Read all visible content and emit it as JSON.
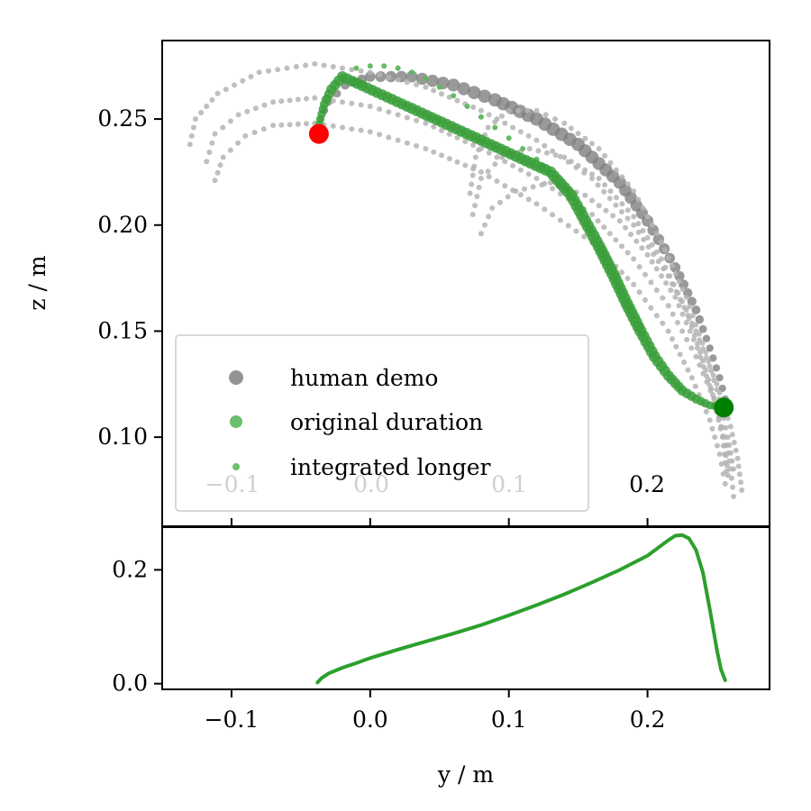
{
  "chart_data": [
    {
      "panel": "top",
      "type": "scatter",
      "ylabel": "z / m",
      "xlim": [
        -0.15,
        0.288
      ],
      "ylim": [
        0.058,
        0.287
      ],
      "yticks": [
        0.1,
        0.15,
        0.2,
        0.25
      ],
      "ytick_labels": [
        "0.10",
        "0.15",
        "0.20",
        "0.25"
      ],
      "faded_xtick_labels": [
        "−0.1",
        "0.0",
        "0.1"
      ],
      "visible_xtick_label": "0.2",
      "grid": false,
      "legend_position": "lower-left",
      "colors": {
        "human_demo": "#808080",
        "human_demo_light": "#b4b4b4",
        "original_duration": "#3a9f3a",
        "integrated_longer": "#5cb85c",
        "start_marker": "#ff0000",
        "end_marker": "#008000"
      },
      "legend": [
        "human demo",
        "original duration",
        "integrated longer"
      ],
      "series": [
        {
          "name": "human demo",
          "curves": [
            [
              [
                -0.038,
                0.246
              ],
              [
                -0.03,
                0.258
              ],
              [
                -0.018,
                0.266
              ],
              [
                0.0,
                0.27
              ],
              [
                0.03,
                0.27
              ],
              [
                0.06,
                0.266
              ],
              [
                0.09,
                0.259
              ],
              [
                0.12,
                0.25
              ],
              [
                0.15,
                0.238
              ],
              [
                0.18,
                0.22
              ],
              [
                0.2,
                0.202
              ],
              [
                0.22,
                0.18
              ],
              [
                0.235,
                0.16
              ],
              [
                0.245,
                0.142
              ],
              [
                0.252,
                0.128
              ],
              [
                0.256,
                0.118
              ],
              [
                0.258,
                0.112
              ]
            ],
            [
              [
                -0.13,
                0.238
              ],
              [
                -0.126,
                0.25
              ],
              [
                -0.11,
                0.262
              ],
              [
                -0.08,
                0.272
              ],
              [
                -0.04,
                0.276
              ],
              [
                0.0,
                0.272
              ],
              [
                0.04,
                0.265
              ],
              [
                0.08,
                0.254
              ],
              [
                0.12,
                0.24
              ],
              [
                0.16,
                0.222
              ],
              [
                0.19,
                0.2
              ],
              [
                0.215,
                0.176
              ],
              [
                0.235,
                0.15
              ],
              [
                0.25,
                0.125
              ],
              [
                0.26,
                0.105
              ],
              [
                0.265,
                0.09
              ],
              [
                0.268,
                0.075
              ]
            ],
            [
              [
                -0.118,
                0.23
              ],
              [
                -0.112,
                0.243
              ],
              [
                -0.095,
                0.252
              ],
              [
                -0.07,
                0.258
              ],
              [
                -0.04,
                0.26
              ],
              [
                0.0,
                0.256
              ],
              [
                0.04,
                0.248
              ],
              [
                0.08,
                0.236
              ],
              [
                0.12,
                0.222
              ],
              [
                0.16,
                0.205
              ],
              [
                0.19,
                0.184
              ],
              [
                0.215,
                0.162
              ],
              [
                0.235,
                0.138
              ],
              [
                0.248,
                0.118
              ],
              [
                0.256,
                0.1
              ],
              [
                0.26,
                0.085
              ],
              [
                0.262,
                0.072
              ]
            ],
            [
              [
                -0.112,
                0.221
              ],
              [
                -0.106,
                0.232
              ],
              [
                -0.09,
                0.242
              ],
              [
                -0.07,
                0.247
              ],
              [
                -0.04,
                0.248
              ],
              [
                0.0,
                0.244
              ],
              [
                0.04,
                0.236
              ],
              [
                0.08,
                0.225
              ],
              [
                0.12,
                0.21
              ],
              [
                0.16,
                0.192
              ],
              [
                0.19,
                0.172
              ],
              [
                0.215,
                0.15
              ],
              [
                0.232,
                0.128
              ],
              [
                0.245,
                0.108
              ],
              [
                0.252,
                0.092
              ],
              [
                0.256,
                0.078
              ]
            ],
            [
              [
                0.072,
                0.215
              ],
              [
                0.076,
                0.232
              ],
              [
                0.085,
                0.246
              ],
              [
                0.1,
                0.254
              ],
              [
                0.12,
                0.254
              ],
              [
                0.14,
                0.248
              ],
              [
                0.165,
                0.236
              ],
              [
                0.19,
                0.216
              ],
              [
                0.21,
                0.192
              ],
              [
                0.228,
                0.166
              ],
              [
                0.242,
                0.14
              ],
              [
                0.252,
                0.118
              ],
              [
                0.258,
                0.1
              ],
              [
                0.262,
                0.085
              ]
            ],
            [
              [
                0.074,
                0.205
              ],
              [
                0.08,
                0.222
              ],
              [
                0.095,
                0.232
              ],
              [
                0.115,
                0.236
              ],
              [
                0.14,
                0.232
              ],
              [
                0.165,
                0.222
              ],
              [
                0.19,
                0.204
              ],
              [
                0.21,
                0.184
              ],
              [
                0.228,
                0.16
              ],
              [
                0.24,
                0.136
              ],
              [
                0.25,
                0.114
              ],
              [
                0.256,
                0.096
              ],
              [
                0.258,
                0.082
              ]
            ],
            [
              [
                0.08,
                0.196
              ],
              [
                0.088,
                0.208
              ],
              [
                0.105,
                0.216
              ],
              [
                0.13,
                0.22
              ],
              [
                0.155,
                0.214
              ],
              [
                0.18,
                0.202
              ],
              [
                0.2,
                0.186
              ],
              [
                0.22,
                0.166
              ],
              [
                0.236,
                0.142
              ],
              [
                0.247,
                0.12
              ],
              [
                0.254,
                0.1
              ],
              [
                0.257,
                0.084
              ]
            ]
          ]
        },
        {
          "name": "original duration",
          "points": [
            [
              -0.038,
              0.243
            ],
            [
              -0.036,
              0.25
            ],
            [
              -0.033,
              0.257
            ],
            [
              -0.028,
              0.264
            ],
            [
              -0.02,
              0.27
            ],
            [
              0.13,
              0.225
            ],
            [
              0.145,
              0.214
            ],
            [
              0.155,
              0.202
            ],
            [
              0.165,
              0.19
            ],
            [
              0.175,
              0.177
            ],
            [
              0.185,
              0.163
            ],
            [
              0.195,
              0.15
            ],
            [
              0.205,
              0.138
            ],
            [
              0.215,
              0.129
            ],
            [
              0.225,
              0.122
            ],
            [
              0.235,
              0.118
            ],
            [
              0.245,
              0.115
            ],
            [
              0.255,
              0.114
            ]
          ]
        },
        {
          "name": "integrated longer",
          "points": [
            [
              -0.02,
              0.27
            ],
            [
              -0.01,
              0.274
            ],
            [
              0.0,
              0.275
            ],
            [
              0.01,
              0.275
            ],
            [
              0.02,
              0.274
            ],
            [
              0.03,
              0.272
            ],
            [
              0.04,
              0.269
            ],
            [
              0.05,
              0.265
            ],
            [
              0.06,
              0.261
            ],
            [
              0.07,
              0.256
            ],
            [
              0.08,
              0.251
            ],
            [
              0.09,
              0.246
            ],
            [
              0.1,
              0.241
            ],
            [
              0.11,
              0.236
            ],
            [
              0.12,
              0.231
            ],
            [
              0.13,
              0.225
            ]
          ]
        },
        {
          "name": "start",
          "points": [
            [
              -0.037,
              0.243
            ]
          ]
        },
        {
          "name": "end",
          "points": [
            [
              0.255,
              0.114
            ]
          ]
        }
      ]
    },
    {
      "panel": "bottom",
      "type": "line",
      "xlabel": "y / m",
      "xlim": [
        -0.15,
        0.288
      ],
      "ylim": [
        -0.01,
        0.275
      ],
      "xticks": [
        -0.1,
        0.0,
        0.1,
        0.2
      ],
      "xtick_labels": [
        "−0.1",
        "0.0",
        "0.1",
        "0.2"
      ],
      "yticks": [
        0.0,
        0.2
      ],
      "ytick_labels": [
        "0.0",
        "0.2"
      ],
      "color": "#2ca02c",
      "x": [
        -0.038,
        -0.035,
        -0.03,
        -0.02,
        -0.01,
        0.0,
        0.02,
        0.04,
        0.06,
        0.08,
        0.1,
        0.12,
        0.14,
        0.16,
        0.18,
        0.2,
        0.21,
        0.215,
        0.22,
        0.225,
        0.23,
        0.235,
        0.24,
        0.245,
        0.25,
        0.253,
        0.256
      ],
      "y": [
        0.002,
        0.01,
        0.018,
        0.028,
        0.036,
        0.045,
        0.06,
        0.074,
        0.088,
        0.103,
        0.12,
        0.138,
        0.157,
        0.178,
        0.2,
        0.225,
        0.243,
        0.252,
        0.26,
        0.261,
        0.255,
        0.235,
        0.195,
        0.13,
        0.06,
        0.025,
        0.006
      ]
    }
  ]
}
